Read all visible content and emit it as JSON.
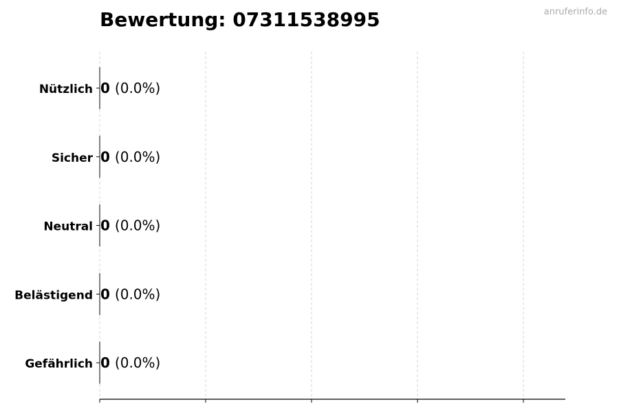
{
  "title": "Bewertung: 07311538995",
  "watermark": "anruferinfo.de",
  "chart_data": {
    "type": "bar",
    "orientation": "horizontal",
    "title": "Bewertung: 07311538995",
    "categories": [
      "Nützlich",
      "Sicher",
      "Neutral",
      "Belästigend",
      "Gefährlich"
    ],
    "values": [
      0,
      0,
      0,
      0,
      0
    ],
    "data_labels": [
      {
        "count": "0",
        "percent": "(0.0%)"
      },
      {
        "count": "0",
        "percent": "(0.0%)"
      },
      {
        "count": "0",
        "percent": "(0.0%)"
      },
      {
        "count": "0",
        "percent": "(0.0%)"
      },
      {
        "count": "0",
        "percent": "(0.0%)"
      }
    ],
    "xlabel": "",
    "ylabel": "",
    "x_tick_labels_shown": false,
    "grid": "vertical dashed",
    "bar_edge_color": "#000000",
    "grid_color": "#cccccc"
  }
}
